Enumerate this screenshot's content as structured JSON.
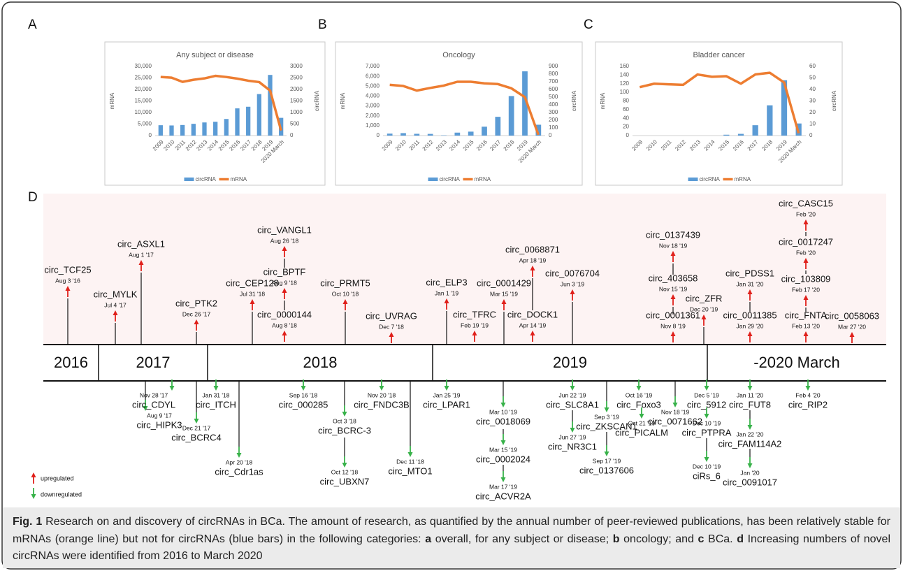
{
  "panel_labels": [
    "A",
    "B",
    "C",
    "D"
  ],
  "chart_data": [
    {
      "type": "combo",
      "title": "Any subject or disease",
      "ylabel": "mRNA",
      "y2label": "circRNA",
      "legend": "bottom",
      "categories": [
        "2009",
        "2010",
        "2011",
        "2012",
        "2013",
        "2014",
        "2015",
        "2016",
        "2017",
        "2018",
        "2019",
        "2020 March"
      ],
      "ylim": [
        0,
        30000
      ],
      "yticks": [
        0,
        {
          "value": 5000,
          "label": "5,000"
        },
        {
          "value": 10000,
          "label": "10,000"
        },
        {
          "value": 15000,
          "label": "15,000"
        },
        {
          "value": 20000,
          "label": "20,000"
        },
        {
          "value": 25000,
          "label": "25,000"
        },
        {
          "value": 30000,
          "label": "30,000"
        }
      ],
      "y2lim": [
        0,
        3000
      ],
      "y2ticks": [
        0,
        500,
        1000,
        1500,
        2000,
        2500,
        3000
      ],
      "series": [
        {
          "name": "circRNA",
          "type": "bar",
          "color": "#5b9bd5",
          "values": [
            4500,
            4400,
            4600,
            5100,
            5700,
            6000,
            7200,
            11800,
            12500,
            18000,
            26300,
            7700
          ]
        },
        {
          "name": "mRNA",
          "type": "line",
          "axis": "y2",
          "color": "#ed7d31",
          "values": [
            2540,
            2510,
            2330,
            2420,
            2480,
            2590,
            2540,
            2470,
            2380,
            2320,
            1950,
            220
          ]
        }
      ]
    },
    {
      "type": "combo",
      "title": "Oncology",
      "ylabel": "mRNA",
      "y2label": "circRNA",
      "legend": "bottom",
      "categories": [
        "2009",
        "2010",
        "2011",
        "2012",
        "2013",
        "2014",
        "2015",
        "2016",
        "2017",
        "2018",
        "2019",
        "2020 March"
      ],
      "ylim": [
        0,
        7000
      ],
      "yticks": [
        0,
        {
          "value": 1000,
          "label": "1,000"
        },
        {
          "value": 2000,
          "label": "2,000"
        },
        {
          "value": 3000,
          "label": "3,000"
        },
        {
          "value": 4000,
          "label": "4,000"
        },
        {
          "value": 5000,
          "label": "5,000"
        },
        {
          "value": 6000,
          "label": "6,000"
        },
        {
          "value": 7000,
          "label": "7,000"
        }
      ],
      "y2lim": [
        0,
        900
      ],
      "y2ticks": [
        0,
        100,
        200,
        300,
        400,
        500,
        600,
        700,
        800,
        900
      ],
      "series": [
        {
          "name": "circRNA",
          "type": "bar",
          "color": "#5b9bd5",
          "values": [
            200,
            250,
            180,
            170,
            30,
            300,
            400,
            900,
            1900,
            4000,
            6500,
            1100
          ]
        },
        {
          "name": "mRNA",
          "type": "line",
          "axis": "y2",
          "color": "#ed7d31",
          "values": [
            660,
            645,
            585,
            620,
            650,
            700,
            700,
            680,
            670,
            615,
            500,
            10
          ]
        }
      ]
    },
    {
      "type": "combo",
      "title": "Bladder cancer",
      "ylabel": "mRNA",
      "y2label": "circRNA",
      "legend": "bottom",
      "categories": [
        "2009",
        "2010",
        "2011",
        "2012",
        "2013",
        "2014",
        "2015",
        "2016",
        "2017",
        "2018",
        "2019",
        "2020 March"
      ],
      "ylim": [
        0,
        160
      ],
      "yticks": [
        0,
        20,
        40,
        60,
        80,
        100,
        120,
        140,
        160
      ],
      "y2lim": [
        0,
        60
      ],
      "y2ticks": [
        0,
        10,
        20,
        30,
        40,
        50,
        60
      ],
      "series": [
        {
          "name": "circRNA",
          "type": "bar",
          "color": "#5b9bd5",
          "values": [
            0,
            0,
            0,
            0,
            0,
            0,
            2,
            4,
            24,
            70,
            128,
            28
          ]
        },
        {
          "name": "mRNA",
          "type": "line",
          "axis": "y2",
          "color": "#ed7d31",
          "values": [
            42,
            45,
            44.5,
            44,
            53,
            51,
            51.5,
            45,
            53,
            54.5,
            46,
            2
          ]
        }
      ]
    }
  ],
  "timeline": {
    "eras": [
      "2016",
      "2017",
      "2018",
      "2019",
      "-2020 March"
    ],
    "upregulated": [
      {
        "name": "circ_TCF25",
        "date": "Aug 3 '16"
      },
      {
        "name": "circ_MYLK",
        "date": "Jul 4 '17"
      },
      {
        "name": "circ_ASXL1",
        "date": "Aug 1 '17"
      },
      {
        "name": "circ_PTK2",
        "date": "Dec 26 '17"
      },
      {
        "name": "circ_CEP128",
        "date": "Jul 31 '18"
      },
      {
        "name": "circ_VANGL1",
        "date": "Aug 26 '18"
      },
      {
        "name": "circ_BPTF",
        "date": "Aug 9 '18"
      },
      {
        "name": "circ_0000144",
        "date": "Aug 8 '18"
      },
      {
        "name": "circ_PRMT5",
        "date": "Oct 10 '18"
      },
      {
        "name": "circ_UVRAG",
        "date": "Dec 7 '18"
      },
      {
        "name": "circ_ELP3",
        "date": "Jan 1 '19"
      },
      {
        "name": "circ_TFRC",
        "date": "Feb 19 '19"
      },
      {
        "name": "circ_0001429",
        "date": "Mar 15 '19"
      },
      {
        "name": "circ_0068871",
        "date": "Apr 18 '19"
      },
      {
        "name": "circ_DOCK1",
        "date": "Apr 14 '19"
      },
      {
        "name": "circ_0076704",
        "date": "Jun 3 '19"
      },
      {
        "name": "circ_0137439",
        "date": "Nov 18 '19"
      },
      {
        "name": "circ_403658",
        "date": "Nov 15 '19"
      },
      {
        "name": "circ_0001361",
        "date": "Nov 8 '19"
      },
      {
        "name": "circ_ZFR",
        "date": "Dec 20 '19"
      },
      {
        "name": "circ_PDSS1",
        "date": "Jan 31 '20"
      },
      {
        "name": "circ_0011385",
        "date": "Jan 29 '20"
      },
      {
        "name": "circ_CASC15",
        "date": "Feb '20"
      },
      {
        "name": "circ_0017247",
        "date": "Feb '20"
      },
      {
        "name": "circ_103809",
        "date": "Feb 17 '20"
      },
      {
        "name": "circ_FNTA",
        "date": "Feb 13 '20"
      },
      {
        "name": "circ_0058063",
        "date": "Mar 27 '20"
      }
    ],
    "downregulated": [
      {
        "name": "circ_HIPK3",
        "date": "Aug 9 '17"
      },
      {
        "name": "circ_CDYL",
        "date": "Nov 28 '17"
      },
      {
        "name": "circ_BCRC4",
        "date": "Dec 21 '17"
      },
      {
        "name": "circ_ITCH",
        "date": "Jan 31 '18"
      },
      {
        "name": "circ_Cdr1as",
        "date": "Apr 20 '18"
      },
      {
        "name": "circ_000285",
        "date": "Sep 16 '18"
      },
      {
        "name": "circ_BCRC-3",
        "date": "Oct 3 '18"
      },
      {
        "name": "circ_UBXN7",
        "date": "Oct 12 '18"
      },
      {
        "name": "circ_FNDC3B",
        "date": "Nov 20 '18"
      },
      {
        "name": "circ_MTO1",
        "date": "Dec 11 '18"
      },
      {
        "name": "circ_LPAR1",
        "date": "Jan 25 '19"
      },
      {
        "name": "circ_0018069",
        "date": "Mar 10 '19"
      },
      {
        "name": "circ_0002024",
        "date": "Mar 15 '19"
      },
      {
        "name": "circ_ACVR2A",
        "date": "Mar 17 '19"
      },
      {
        "name": "circ_SLC8A1",
        "date": "Jun 22 '19"
      },
      {
        "name": "circ_NR3C1",
        "date": "Jun 27 '19"
      },
      {
        "name": "circ_ZKSCAN1",
        "date": "Sep 3 '19"
      },
      {
        "name": "circ_0137606",
        "date": "Sep 17 '19"
      },
      {
        "name": "circ_Foxo3",
        "date": "Oct 16 '19"
      },
      {
        "name": "circ_PICALM",
        "date": "Oct 21 '19"
      },
      {
        "name": "circ_0071662",
        "date": "Nov 18 '19"
      },
      {
        "name": "circ_5912",
        "date": "Dec 5 '19"
      },
      {
        "name": "circ_PTPRA",
        "date": "Dec 10 '19"
      },
      {
        "name": "ciRs_6",
        "date": "Dec 10 '19"
      },
      {
        "name": "circ_FUT8",
        "date": "Jan 11 '20"
      },
      {
        "name": "circ_FAM114A2",
        "date": "Jan 22 '20"
      },
      {
        "name": "circ_0091017",
        "date": "Jan '20"
      },
      {
        "name": "circ_RIP2",
        "date": "Feb 4 '20"
      }
    ],
    "legend": {
      "up": "upregulated",
      "down": "downregulated"
    }
  },
  "caption": {
    "label": "Fig. 1",
    "segments": [
      "Research on and discovery of circRNAs in BCa. The amount of research, as quantified by the annual number of peer-reviewed publications, has been relatively stable for mRNAs (orange line) but not for circRNAs (blue bars) in the following categories:",
      "a",
      "overall, for any subject or disease;",
      "b",
      "oncology; and",
      "c",
      "BCa.",
      "d",
      "Increasing numbers of novel circRNAs were identified from 2016 to March 2020"
    ]
  }
}
